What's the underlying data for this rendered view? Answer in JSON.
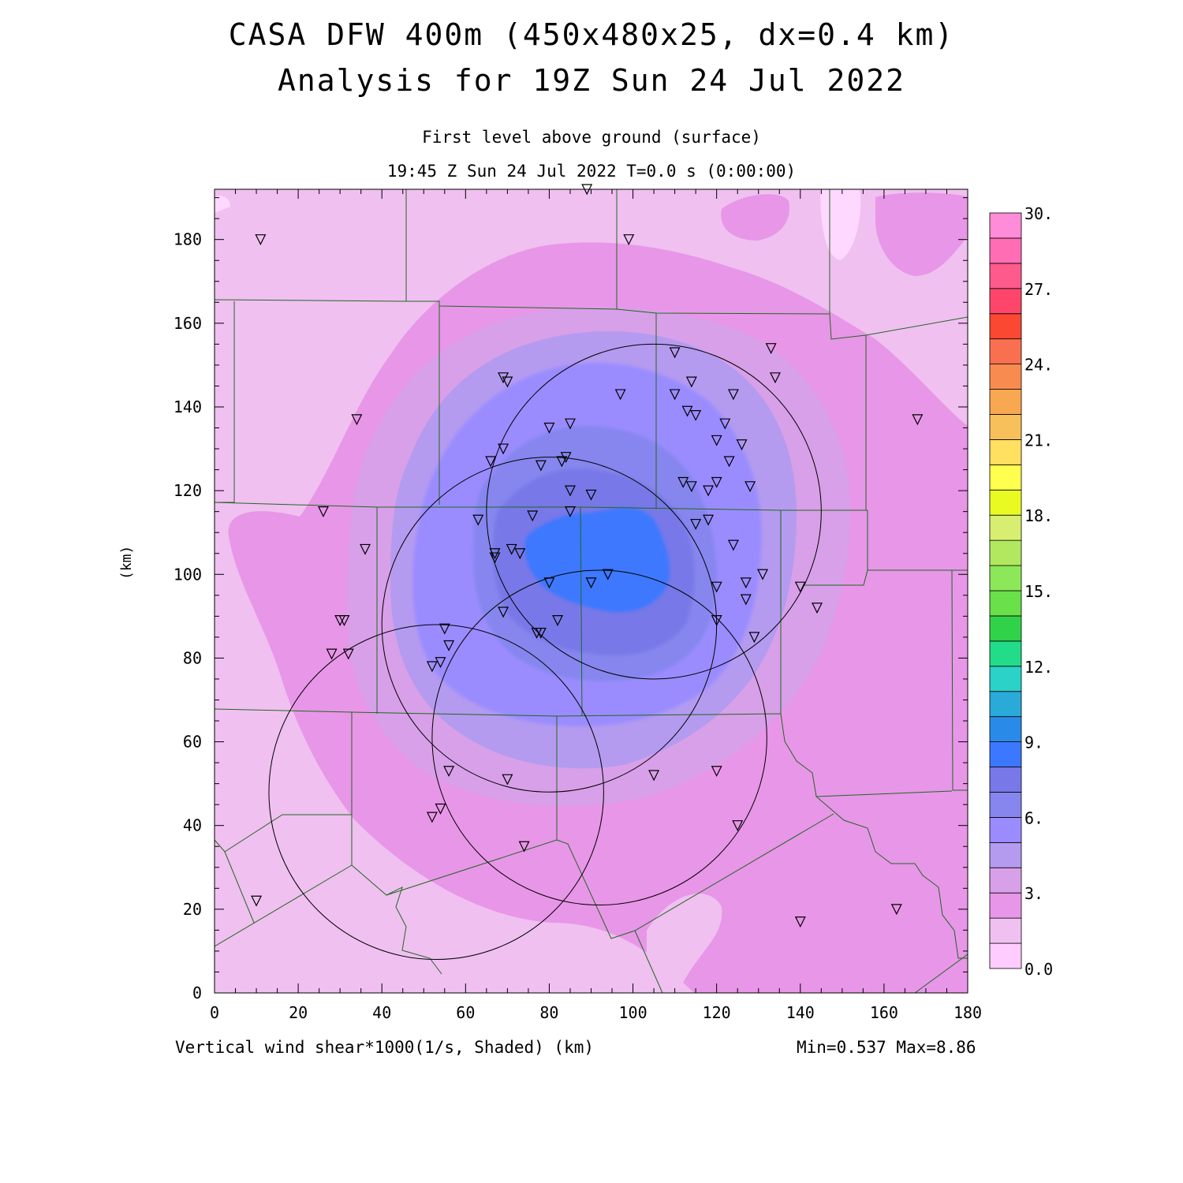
{
  "title_line1": "CASA DFW 400m (450x480x25, dx=0.4 km)",
  "title_line2": "Analysis for 19Z Sun 24 Jul 2022",
  "subtitle_line1": "First level above ground (surface)",
  "subtitle_line2": "19:45 Z Sun 24 Jul 2022    T=0.0 s (0:00:00)",
  "field_label": "Vertical wind shear*1000(1/s, Shaded)  (km)",
  "minmax_label": "Min=0.537 Max=8.86",
  "y_axis_label": "(km)",
  "x_ticks": [
    "0",
    "20",
    "40",
    "60",
    "80",
    "100",
    "120",
    "140",
    "160",
    "180"
  ],
  "y_ticks": [
    "0",
    "20",
    "40",
    "60",
    "80",
    "100",
    "120",
    "140",
    "160",
    "180"
  ],
  "colorbar": {
    "labels": [
      "30.",
      "27.",
      "24.",
      "21.",
      "18.",
      "15.",
      "12.",
      "9.",
      "6.",
      "3.",
      "0.0"
    ],
    "colors": [
      "#ffccff",
      "#f0c0f0",
      "#e896e8",
      "#d8a0e8",
      "#b49bf0",
      "#9a8cff",
      "#8686ee",
      "#7878e8",
      "#3c78ff",
      "#2a8ae8",
      "#2aaad8",
      "#2ad2c8",
      "#22dc8a",
      "#30d24a",
      "#6ae04a",
      "#8ce858",
      "#b2e860",
      "#d8ee70",
      "#e8fa22",
      "#ffff50",
      "#ffe060",
      "#f8c05a",
      "#f8a850",
      "#f88c50",
      "#f87050",
      "#fa4832",
      "#ff466a",
      "#ff5a8c",
      "#ff6eb4",
      "#ff8cd8"
    ]
  },
  "map_extent": {
    "x": [
      0,
      180
    ],
    "y": [
      0,
      192
    ]
  },
  "radars": [
    {
      "cx": 105,
      "cy": 115,
      "r": 40
    },
    {
      "cx": 80,
      "cy": 88,
      "r": 40
    },
    {
      "cx": 92,
      "cy": 61,
      "r": 40
    },
    {
      "cx": 53,
      "cy": 48,
      "r": 40
    }
  ],
  "stations": [
    [
      11,
      180
    ],
    [
      89,
      192
    ],
    [
      99,
      180
    ],
    [
      34,
      137
    ],
    [
      26,
      115
    ],
    [
      36,
      106
    ],
    [
      30,
      89
    ],
    [
      31,
      89
    ],
    [
      28,
      81
    ],
    [
      32,
      81
    ],
    [
      69,
      147
    ],
    [
      70,
      146
    ],
    [
      80,
      135
    ],
    [
      85,
      136
    ],
    [
      97,
      143
    ],
    [
      110,
      153
    ],
    [
      110,
      143
    ],
    [
      114,
      146
    ],
    [
      124,
      143
    ],
    [
      133,
      154
    ],
    [
      134,
      147
    ],
    [
      168,
      137
    ],
    [
      113,
      139
    ],
    [
      115,
      138
    ],
    [
      122,
      136
    ],
    [
      120,
      132
    ],
    [
      126,
      131
    ],
    [
      123,
      127
    ],
    [
      69,
      130
    ],
    [
      66,
      127
    ],
    [
      78,
      126
    ],
    [
      83,
      127
    ],
    [
      84,
      128
    ],
    [
      85,
      120
    ],
    [
      90,
      119
    ],
    [
      112,
      122
    ],
    [
      114,
      121
    ],
    [
      118,
      120
    ],
    [
      120,
      122
    ],
    [
      128,
      121
    ],
    [
      63,
      113
    ],
    [
      76,
      114
    ],
    [
      85,
      115
    ],
    [
      115,
      112
    ],
    [
      118,
      113
    ],
    [
      124,
      107
    ],
    [
      67,
      104
    ],
    [
      67,
      105
    ],
    [
      71,
      106
    ],
    [
      73,
      105
    ],
    [
      80,
      98
    ],
    [
      90,
      98
    ],
    [
      94,
      100
    ],
    [
      120,
      97
    ],
    [
      127,
      98
    ],
    [
      131,
      100
    ],
    [
      140,
      97
    ],
    [
      144,
      92
    ],
    [
      69,
      91
    ],
    [
      82,
      89
    ],
    [
      120,
      89
    ],
    [
      127,
      94
    ],
    [
      129,
      85
    ],
    [
      55,
      87
    ],
    [
      56,
      83
    ],
    [
      54,
      79
    ],
    [
      52,
      78
    ],
    [
      77,
      86
    ],
    [
      78,
      86
    ],
    [
      56,
      53
    ],
    [
      70,
      51
    ],
    [
      105,
      52
    ],
    [
      120,
      53
    ],
    [
      54,
      44
    ],
    [
      52,
      42
    ],
    [
      74,
      35
    ],
    [
      125,
      40
    ],
    [
      10,
      22
    ],
    [
      140,
      17
    ],
    [
      163,
      20
    ]
  ]
}
